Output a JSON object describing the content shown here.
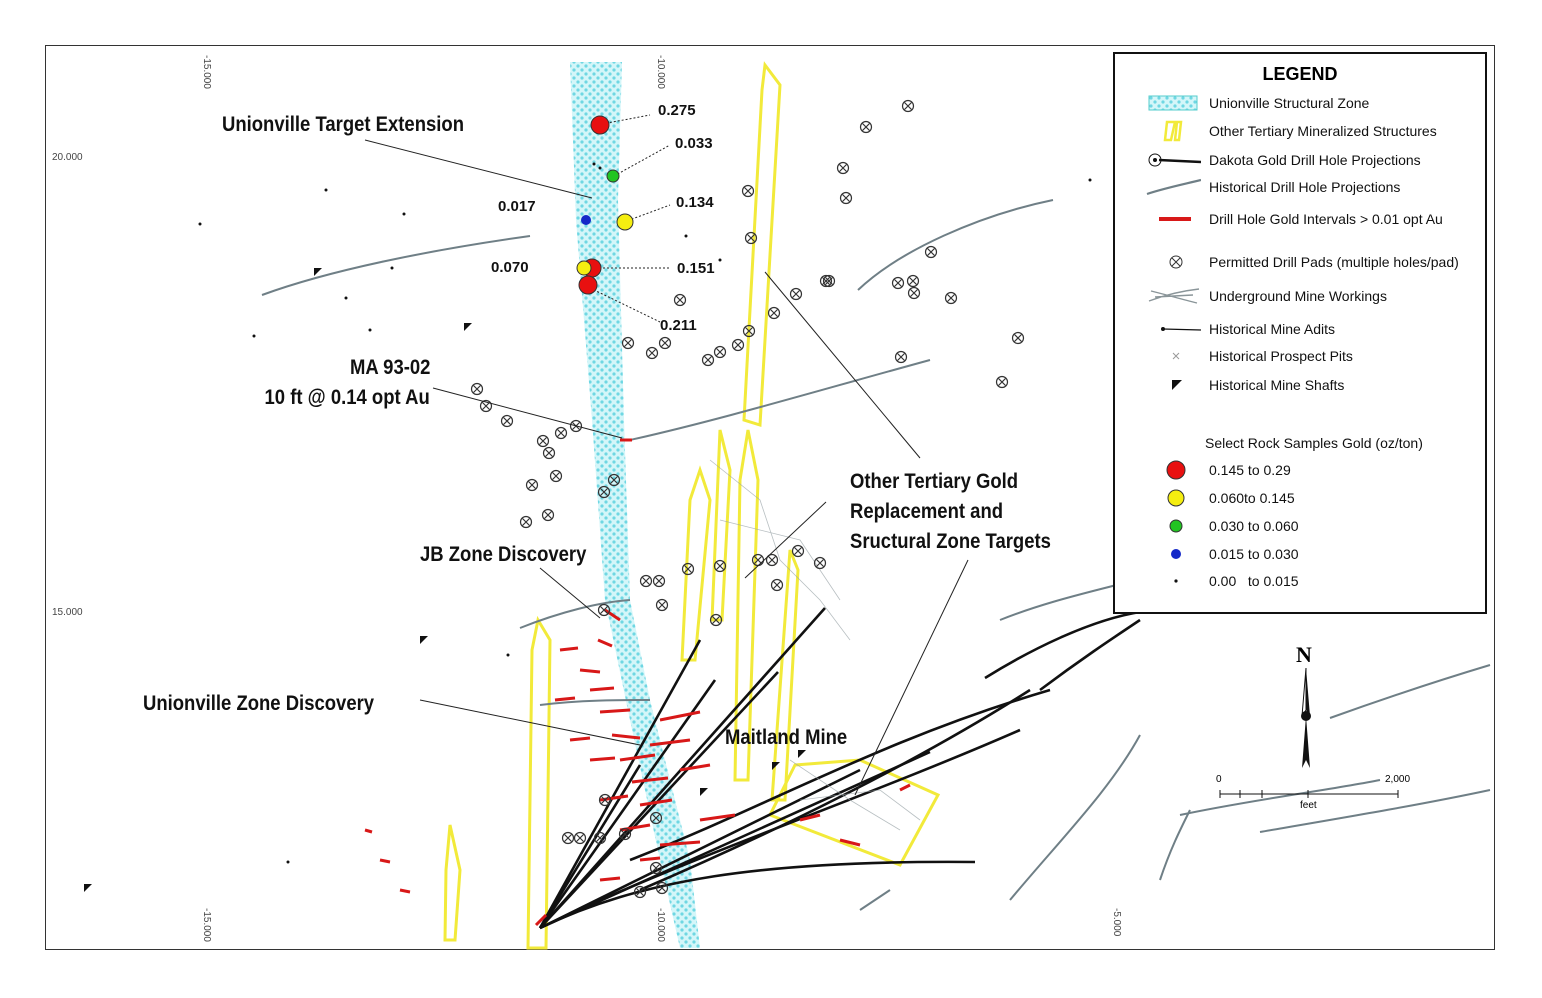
{
  "legend": {
    "title": "LEGEND",
    "items": [
      {
        "label": "Unionville Structural Zone",
        "icon": "cyan-hatched-zone"
      },
      {
        "label": "Other Tertiary Mineralized Structures",
        "icon": "yellow-outline"
      },
      {
        "label": "Dakota Gold Drill Hole Projections",
        "icon": "black-line-with-collar"
      },
      {
        "label": "Historical Drill Hole Projections",
        "icon": "gray-line"
      },
      {
        "label": "Drill Hole Gold Intervals > 0.01 opt Au",
        "icon": "red-segment"
      },
      {
        "label": "Permitted Drill Pads (multiple holes/pad)",
        "icon": "circled-x"
      },
      {
        "label": "Underground Mine Workings",
        "icon": "crossed-lines"
      },
      {
        "label": "Historical Mine Adits",
        "icon": "dot-line"
      },
      {
        "label": "Historical Prospect Pits",
        "icon": "small-x"
      },
      {
        "label": "Historical Mine Shafts",
        "icon": "triangle-flag"
      }
    ],
    "samples_title": "Select Rock Samples Gold (oz/ton)",
    "samples": [
      {
        "label": "0.145 to 0.29",
        "color": "#e81010"
      },
      {
        "label": "0.060to 0.145",
        "color": "#f5ee10"
      },
      {
        "label": "0.030 to 0.060",
        "color": "#22c422"
      },
      {
        "label": "0.015 to 0.030",
        "color": "#1428c8"
      },
      {
        "label": "0.00   to 0.015",
        "color": "#111111"
      }
    ]
  },
  "callouts": {
    "target_extension": "Unionville Target Extension",
    "ma_line1": "MA 93-02",
    "ma_line2": "10 ft @ 0.14 opt Au",
    "jb_zone": "JB Zone Discovery",
    "unionville_zone": "Unionville Zone Discovery",
    "maitland": "Maitland Mine",
    "other_line1": "Other Tertiary Gold",
    "other_line2": "Replacement and",
    "other_line3": "Sructural Zone Targets"
  },
  "sample_values": {
    "v1": "0.275",
    "v2": "0.033",
    "v3": "0.017",
    "v4": "0.134",
    "v5": "0.070",
    "v6": "0.151",
    "v7": "0.211"
  },
  "grid_labels": {
    "x_top_1": "-15.000",
    "x_top_2": "-10.000",
    "x_bot_1": "-15.000",
    "x_bot_2": "-10.000",
    "x_bot_3": "-5.000",
    "y_1": "20.000",
    "y_2": "15.000"
  },
  "north": {
    "label": "N"
  },
  "scale": {
    "start": "0",
    "end": "2,000",
    "unit": "feet"
  },
  "colors": {
    "zone_cyan": "#8fe6ee",
    "structure_yellow": "#f2ea3a",
    "interval_red": "#d81818",
    "historic_gray": "#6f7f86"
  }
}
